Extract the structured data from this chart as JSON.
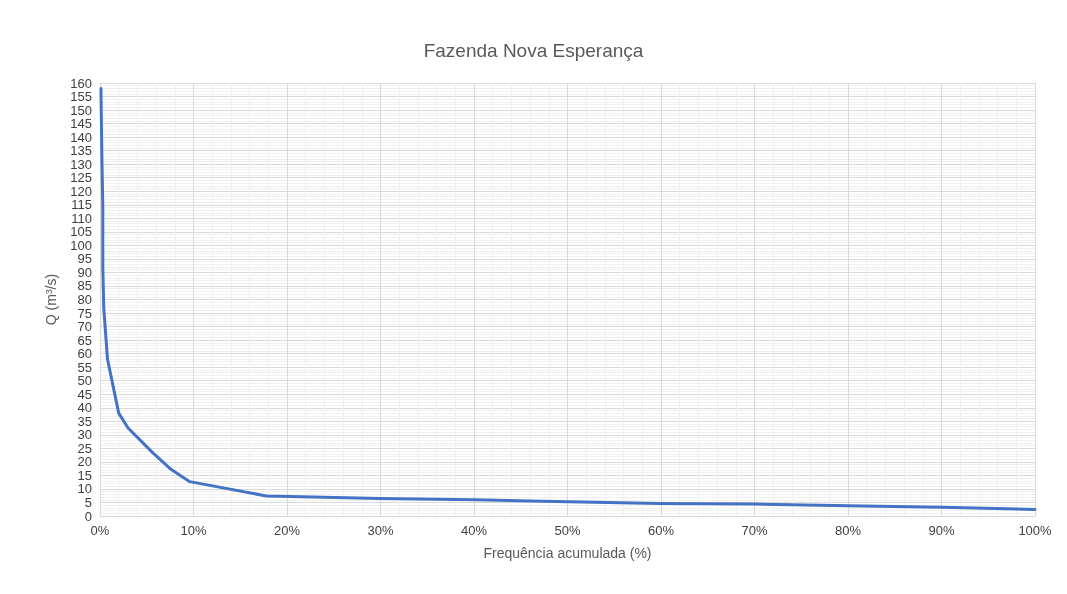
{
  "chart_data": {
    "type": "line",
    "title": "Fazenda Nova Esperança",
    "xlabel": "Frequência acumulada (%)",
    "ylabel": "Q (m³/s)",
    "x": [
      0.1,
      0.2,
      0.3,
      0.3,
      0.4,
      0.8,
      1.4,
      2,
      3,
      5.6,
      7.5,
      9.6,
      17.8,
      30,
      40,
      50,
      60,
      70,
      80,
      90,
      100
    ],
    "series": [
      {
        "color": "#4472c4",
        "values": [
          158,
          133,
          114,
          92,
          77,
          58,
          48,
          38,
          32.5,
          23.5,
          17.5,
          12.7,
          7.4,
          6.5,
          6,
          5.3,
          4.6,
          4.4,
          3.8,
          3.2,
          2.4
        ]
      }
    ],
    "xlim": [
      0,
      100
    ],
    "xticks": [
      {
        "value": 0,
        "label": "0%"
      },
      {
        "value": 10,
        "label": "10%"
      },
      {
        "value": 20,
        "label": "20%"
      },
      {
        "value": 30,
        "label": "30%"
      },
      {
        "value": 40,
        "label": "40%"
      },
      {
        "value": 50,
        "label": "50%"
      },
      {
        "value": 60,
        "label": "60%"
      },
      {
        "value": 70,
        "label": "70%"
      },
      {
        "value": 80,
        "label": "80%"
      },
      {
        "value": 90,
        "label": "90%"
      },
      {
        "value": 100,
        "label": "100%"
      }
    ],
    "ylim": [
      0,
      160
    ],
    "yticks": [
      0,
      5,
      10,
      15,
      20,
      25,
      30,
      35,
      40,
      45,
      50,
      55,
      60,
      65,
      70,
      75,
      80,
      85,
      90,
      95,
      100,
      105,
      110,
      115,
      120,
      125,
      130,
      135,
      140,
      145,
      150,
      155,
      160
    ],
    "grid": true,
    "marker": "none",
    "line_style": "solid"
  }
}
